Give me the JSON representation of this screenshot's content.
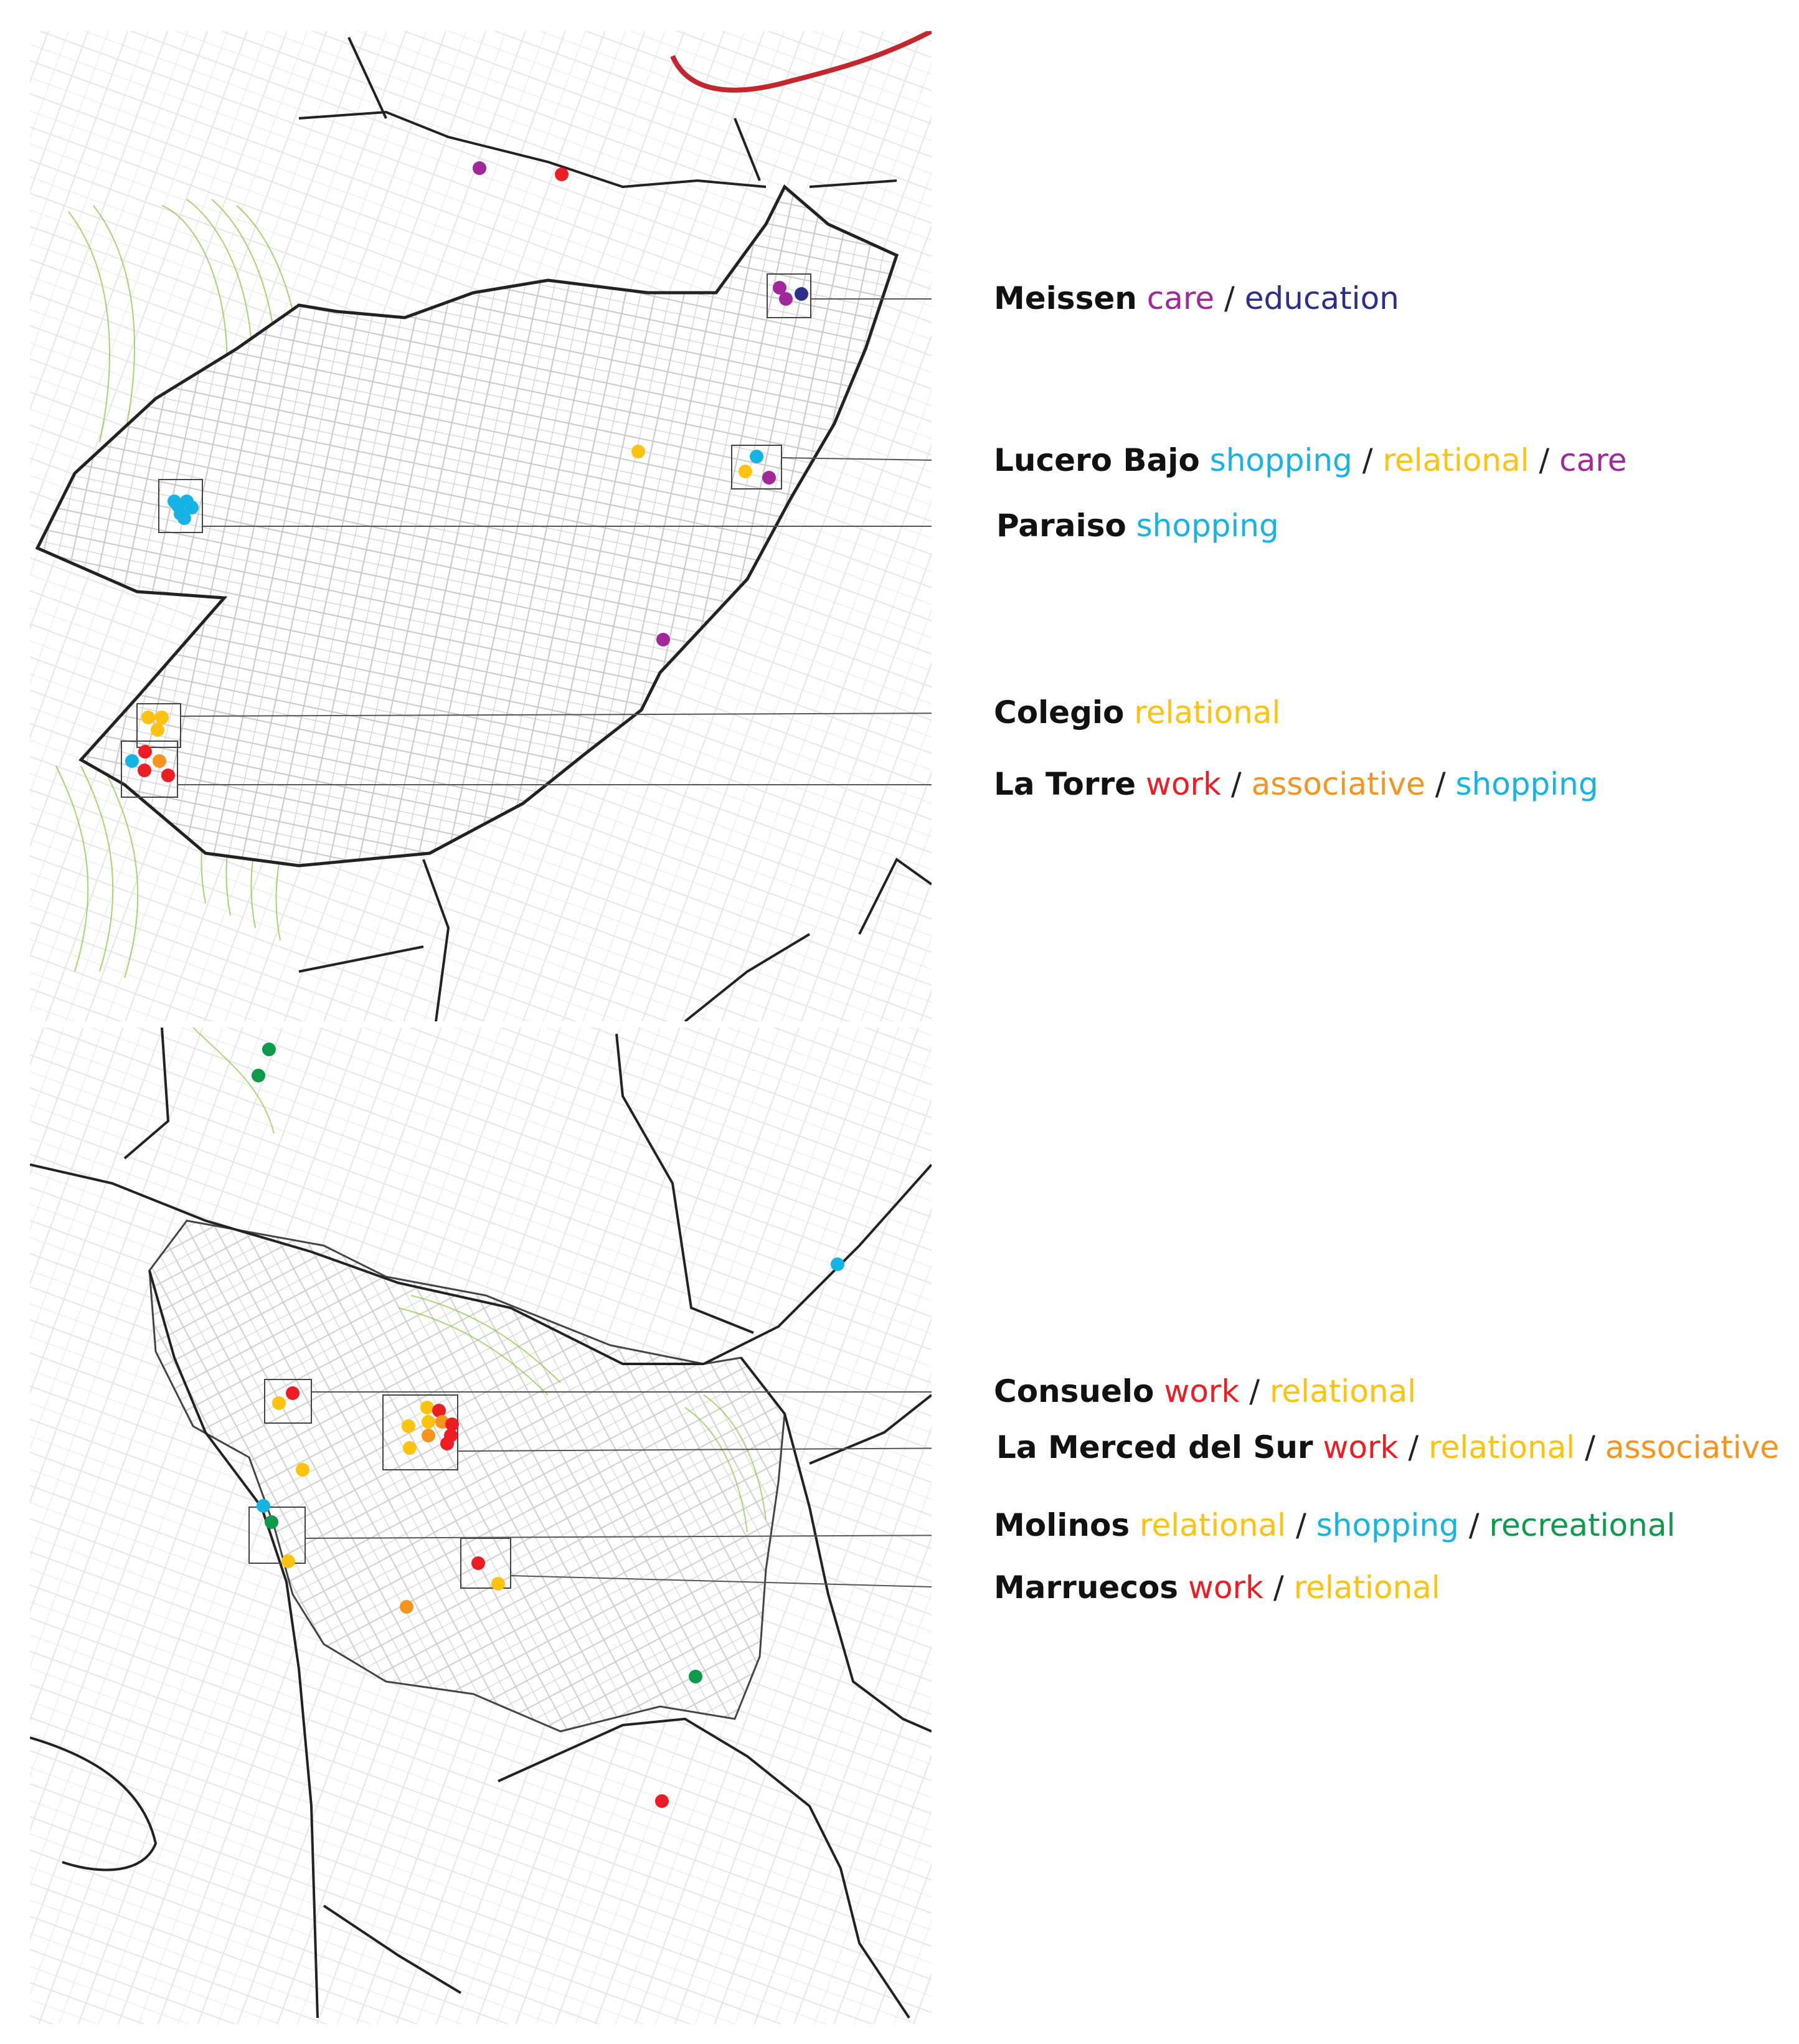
{
  "colors": {
    "care": "#a0289a",
    "education": "#2b2f8a",
    "shopping": "#16b4e4",
    "relational": "#ffc20e",
    "work": "#ee1d23",
    "associative": "#f7941d",
    "recreational": "#0d9a4b",
    "boundary": "#222222",
    "rail": "#c1272d",
    "contour": "#8cc63f"
  },
  "separator": "/",
  "upper_map": {
    "labels": [
      {
        "place": "Meissen",
        "activities": [
          "care",
          "education"
        ]
      },
      {
        "place": "Lucero Bajo",
        "activities": [
          "shopping",
          "relational",
          "care"
        ]
      },
      {
        "place": "Paraiso",
        "activities": [
          "shopping"
        ]
      },
      {
        "place": "Colegio",
        "activities": [
          "relational"
        ]
      },
      {
        "place": "La Torre",
        "activities": [
          "work",
          "associative",
          "shopping"
        ]
      }
    ]
  },
  "lower_map": {
    "labels": [
      {
        "place": "Consuelo",
        "activities": [
          "work",
          "relational"
        ]
      },
      {
        "place": "La Merced del Sur",
        "activities": [
          "work",
          "relational",
          "associative"
        ]
      },
      {
        "place": "Molinos",
        "activities": [
          "relational",
          "shopping",
          "recreational"
        ]
      },
      {
        "place": "Marruecos",
        "activities": [
          "work",
          "relational"
        ]
      }
    ]
  },
  "legend_icons": [
    "map-marker-dot-icon"
  ]
}
